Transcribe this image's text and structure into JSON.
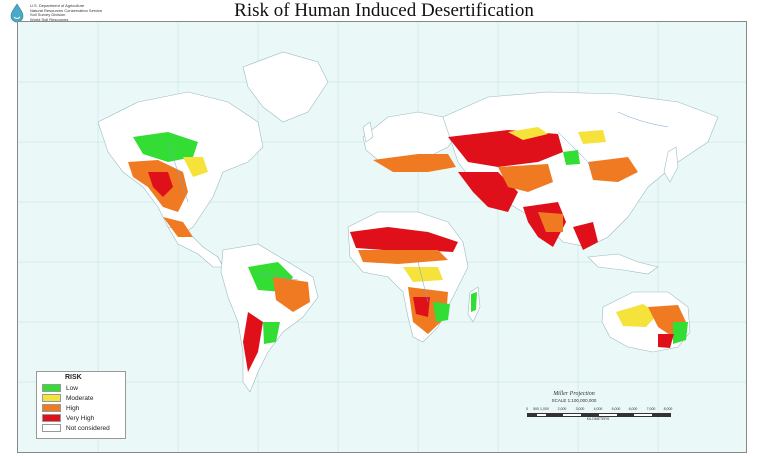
{
  "title": "Risk of Human Induced Desertification",
  "agency": {
    "lines": [
      "U.S. Department of Agriculture",
      "Natural Resources Conservation Service",
      "Soil Survey Division",
      "World Soil Resources"
    ],
    "logo_icon": "usda-nrcs-drop-icon"
  },
  "colors": {
    "ocean": "#eaf8f8",
    "land": "#ffffff",
    "low": "#33dd33",
    "moderate": "#f5e23a",
    "high": "#f07a22",
    "very_high": "#e0101a",
    "not_considered": "#ffffff"
  },
  "legend": {
    "title": "RISK",
    "items": [
      {
        "label": "Low",
        "color": "#33dd33"
      },
      {
        "label": "Moderate",
        "color": "#f5e23a"
      },
      {
        "label": "High",
        "color": "#f07a22"
      },
      {
        "label": "Very High",
        "color": "#e0101a"
      },
      {
        "label": "Not considered",
        "color": "#ffffff"
      }
    ]
  },
  "projection": {
    "name": "Miller Projection",
    "scale": "SCALE 1:100,000,000",
    "ticks": [
      "0",
      "500 1,000",
      "2,000",
      "3,000",
      "4,000",
      "5,000",
      "6,000",
      "7,000",
      "8,000"
    ],
    "unit": "KILOMETERS"
  }
}
